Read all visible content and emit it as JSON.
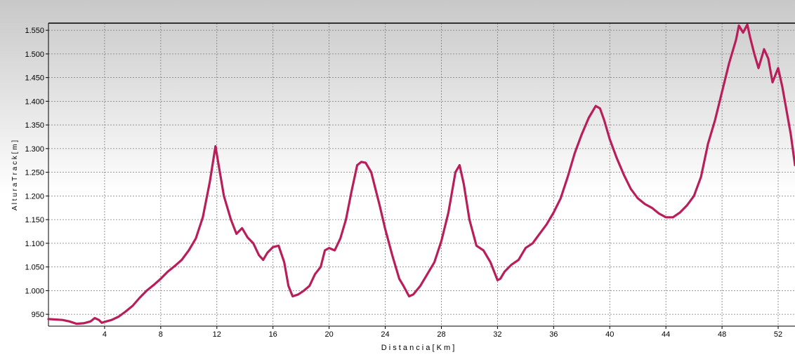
{
  "chart_data": {
    "type": "line",
    "title": "",
    "xlabel": "D i s t a n c i a   [ K m ]",
    "ylabel": "A l t u r a   T r a c k   [ m ]",
    "xlim": [
      0,
      53.2
    ],
    "ylim": [
      925,
      1565
    ],
    "x_ticks": [
      4,
      8,
      12,
      16,
      20,
      24,
      28,
      32,
      36,
      40,
      44,
      48,
      52
    ],
    "y_ticks": [
      950,
      1000,
      1050,
      1100,
      1150,
      1200,
      1250,
      1300,
      1350,
      1400,
      1450,
      1500,
      1550
    ],
    "x_tick_labels": [
      "4",
      "8",
      "12",
      "16",
      "20",
      "24",
      "28",
      "32",
      "36",
      "40",
      "44",
      "48",
      "52"
    ],
    "y_tick_labels": [
      "950",
      "1.000",
      "1.050",
      "1.100",
      "1.150",
      "1.200",
      "1.250",
      "1.300",
      "1.350",
      "1.400",
      "1.450",
      "1.500",
      "1.550"
    ],
    "grid": true,
    "line_color": "#b81f5a",
    "background_top_color": "#c8c8c8",
    "background_bottom_color": "#ffffff",
    "series": [
      {
        "x": [
          0,
          1.0,
          1.5,
          2.0,
          2.5,
          3.0,
          3.3,
          3.6,
          3.8,
          4.0,
          4.5,
          5.0,
          5.5,
          6.0,
          6.5,
          7.0,
          7.5,
          8.0,
          8.5,
          9.0,
          9.5,
          10.0,
          10.5,
          11.0,
          11.5,
          11.9,
          12.1,
          12.5,
          13.0,
          13.4,
          13.8,
          14.2,
          14.6,
          15.0,
          15.3,
          15.6,
          16.0,
          16.4,
          16.8,
          17.1,
          17.4,
          17.8,
          18.2,
          18.6,
          19.0,
          19.4,
          19.7,
          20.0,
          20.4,
          20.8,
          21.2,
          21.6,
          22.0,
          22.3,
          22.6,
          23.0,
          23.3,
          23.6,
          24.0,
          24.5,
          25.0,
          25.3,
          25.7,
          26.0,
          26.5,
          27.0,
          27.5,
          28.0,
          28.5,
          29.0,
          29.3,
          29.6,
          30.0,
          30.5,
          31.0,
          31.5,
          32.0,
          32.2,
          32.5,
          33.0,
          33.5,
          34.0,
          34.5,
          35.0,
          35.5,
          36.0,
          36.5,
          37.0,
          37.5,
          38.0,
          38.5,
          39.0,
          39.3,
          39.6,
          40.0,
          40.5,
          41.0,
          41.5,
          42.0,
          42.5,
          43.0,
          43.5,
          44.0,
          44.5,
          45.0,
          45.5,
          46.0,
          46.5,
          47.0,
          47.5,
          48.0,
          48.5,
          49.0,
          49.2,
          49.5,
          49.8,
          50.0,
          50.3,
          50.6,
          50.8,
          51.0,
          51.3,
          51.6,
          52.0,
          52.3,
          52.6,
          52.9,
          53.2
        ],
        "y": [
          940,
          938,
          935,
          930,
          931,
          935,
          942,
          938,
          932,
          934,
          938,
          945,
          956,
          968,
          985,
          1000,
          1012,
          1025,
          1040,
          1052,
          1065,
          1085,
          1110,
          1155,
          1230,
          1305,
          1270,
          1200,
          1150,
          1120,
          1132,
          1112,
          1100,
          1075,
          1065,
          1080,
          1092,
          1095,
          1060,
          1010,
          988,
          992,
          1000,
          1010,
          1035,
          1050,
          1085,
          1090,
          1085,
          1110,
          1150,
          1210,
          1265,
          1272,
          1270,
          1250,
          1215,
          1180,
          1130,
          1075,
          1025,
          1010,
          988,
          992,
          1010,
          1035,
          1060,
          1105,
          1165,
          1250,
          1265,
          1225,
          1150,
          1095,
          1085,
          1060,
          1022,
          1025,
          1040,
          1055,
          1065,
          1090,
          1100,
          1120,
          1140,
          1165,
          1195,
          1240,
          1290,
          1330,
          1365,
          1390,
          1385,
          1360,
          1320,
          1280,
          1245,
          1215,
          1195,
          1183,
          1175,
          1163,
          1155,
          1155,
          1165,
          1180,
          1200,
          1240,
          1310,
          1360,
          1420,
          1480,
          1530,
          1560,
          1545,
          1562,
          1535,
          1500,
          1470,
          1490,
          1510,
          1490,
          1440,
          1470,
          1430,
          1380,
          1330,
          1265
        ]
      }
    ]
  }
}
